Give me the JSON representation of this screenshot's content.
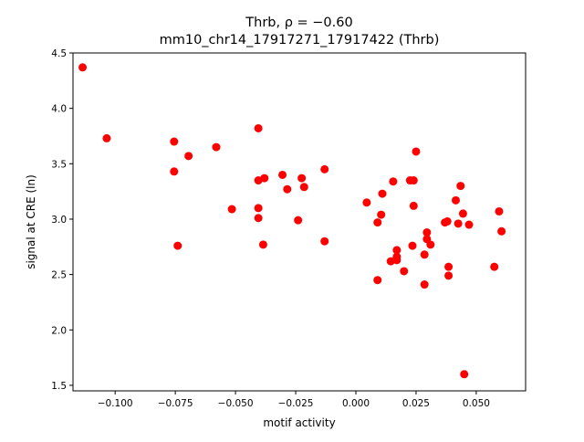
{
  "chart_data": {
    "type": "scatter",
    "title_line1": "Thrb, ρ = −0.60",
    "title_line2": "mm10_chr14_17917271_17917422 (Thrb)",
    "xlabel": "motif activity",
    "ylabel": "signal at CRE (ln)",
    "xlim": [
      -0.1175,
      0.0705
    ],
    "ylim": [
      1.45,
      4.5
    ],
    "xticks": [
      -0.1,
      -0.075,
      -0.05,
      -0.025,
      0.0,
      0.025,
      0.05
    ],
    "xtick_labels": [
      "−0.100",
      "−0.075",
      "−0.050",
      "−0.025",
      "0.000",
      "0.025",
      "0.050"
    ],
    "yticks": [
      1.5,
      2.0,
      2.5,
      3.0,
      3.5,
      4.0,
      4.5
    ],
    "ytick_labels": [
      "1.5",
      "2.0",
      "2.5",
      "3.0",
      "3.5",
      "4.0",
      "4.5"
    ],
    "grid": false,
    "marker_color": "#ff0000",
    "points": [
      {
        "x": -0.1135,
        "y": 4.37
      },
      {
        "x": -0.1035,
        "y": 3.73
      },
      {
        "x": -0.0755,
        "y": 3.7
      },
      {
        "x": -0.0755,
        "y": 3.43
      },
      {
        "x": -0.074,
        "y": 2.76
      },
      {
        "x": -0.0695,
        "y": 3.57
      },
      {
        "x": -0.058,
        "y": 3.65
      },
      {
        "x": -0.0515,
        "y": 3.09
      },
      {
        "x": -0.0405,
        "y": 3.82
      },
      {
        "x": -0.0405,
        "y": 3.35
      },
      {
        "x": -0.0405,
        "y": 3.1
      },
      {
        "x": -0.0405,
        "y": 3.01
      },
      {
        "x": -0.038,
        "y": 3.37
      },
      {
        "x": -0.0385,
        "y": 2.77
      },
      {
        "x": -0.0305,
        "y": 3.4
      },
      {
        "x": -0.0285,
        "y": 3.27
      },
      {
        "x": -0.024,
        "y": 2.99
      },
      {
        "x": -0.0225,
        "y": 3.37
      },
      {
        "x": -0.0215,
        "y": 3.29
      },
      {
        "x": -0.013,
        "y": 3.45
      },
      {
        "x": -0.013,
        "y": 2.8
      },
      {
        "x": 0.0045,
        "y": 3.15
      },
      {
        "x": 0.009,
        "y": 2.97
      },
      {
        "x": 0.009,
        "y": 2.45
      },
      {
        "x": 0.0105,
        "y": 3.04
      },
      {
        "x": 0.011,
        "y": 3.23
      },
      {
        "x": 0.0145,
        "y": 2.62
      },
      {
        "x": 0.0155,
        "y": 3.34
      },
      {
        "x": 0.017,
        "y": 2.72
      },
      {
        "x": 0.017,
        "y": 2.66
      },
      {
        "x": 0.017,
        "y": 2.63
      },
      {
        "x": 0.02,
        "y": 2.53
      },
      {
        "x": 0.0225,
        "y": 3.35
      },
      {
        "x": 0.0235,
        "y": 2.76
      },
      {
        "x": 0.024,
        "y": 3.35
      },
      {
        "x": 0.024,
        "y": 3.12
      },
      {
        "x": 0.025,
        "y": 3.61
      },
      {
        "x": 0.0285,
        "y": 2.68
      },
      {
        "x": 0.0285,
        "y": 2.41
      },
      {
        "x": 0.0295,
        "y": 2.88
      },
      {
        "x": 0.0295,
        "y": 2.82
      },
      {
        "x": 0.031,
        "y": 2.77
      },
      {
        "x": 0.037,
        "y": 2.97
      },
      {
        "x": 0.038,
        "y": 2.98
      },
      {
        "x": 0.0385,
        "y": 2.57
      },
      {
        "x": 0.0385,
        "y": 2.49
      },
      {
        "x": 0.0415,
        "y": 3.17
      },
      {
        "x": 0.0425,
        "y": 2.96
      },
      {
        "x": 0.0435,
        "y": 3.3
      },
      {
        "x": 0.0445,
        "y": 3.05
      },
      {
        "x": 0.045,
        "y": 1.6
      },
      {
        "x": 0.047,
        "y": 2.95
      },
      {
        "x": 0.0575,
        "y": 2.57
      },
      {
        "x": 0.0595,
        "y": 3.07
      },
      {
        "x": 0.0605,
        "y": 2.89
      }
    ]
  }
}
